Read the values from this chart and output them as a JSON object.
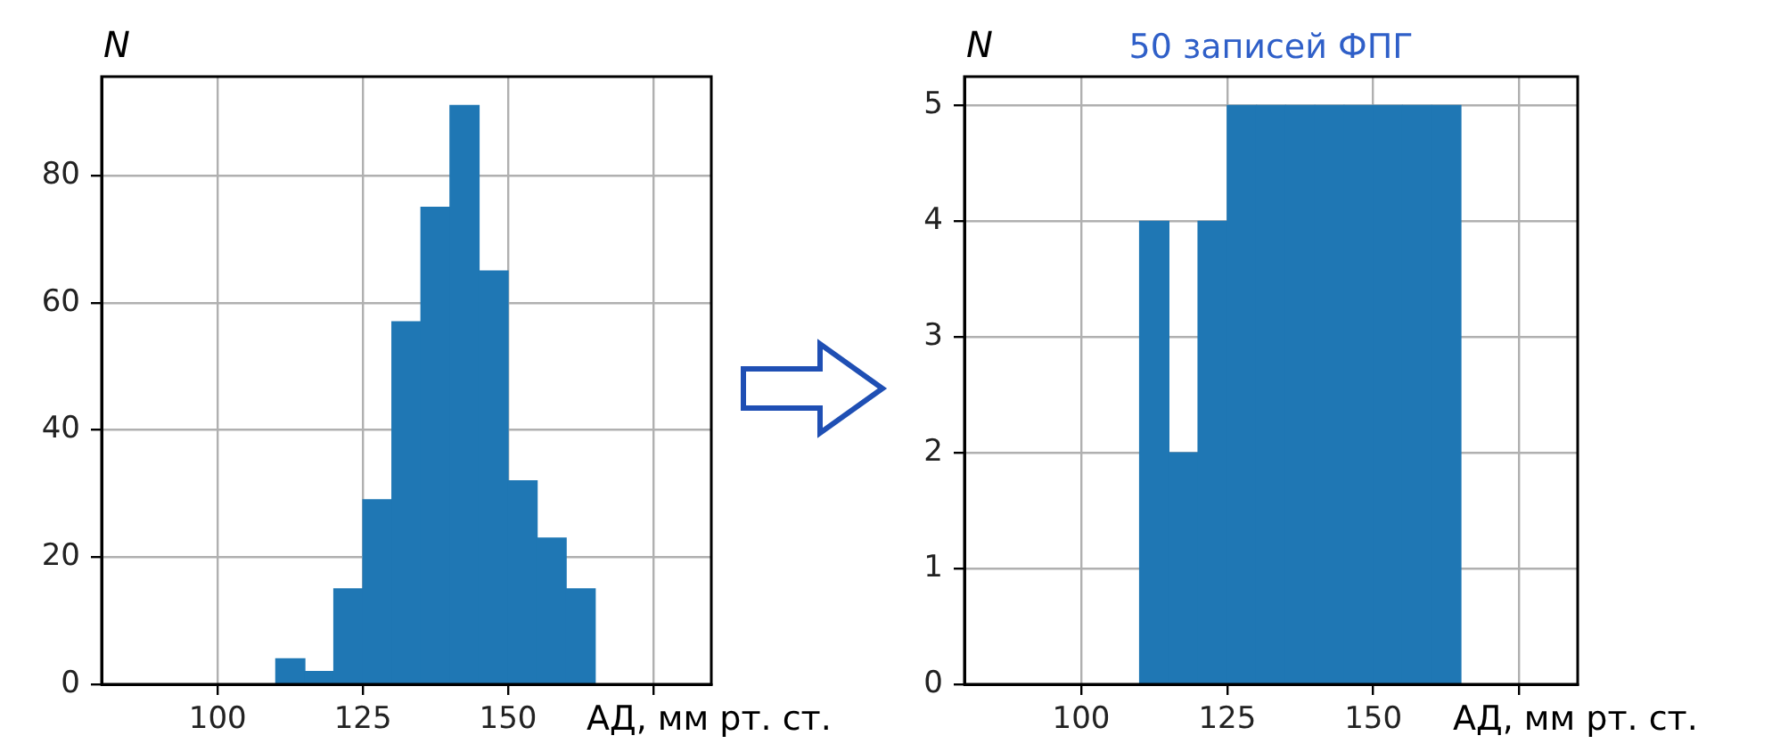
{
  "chart_data": [
    {
      "type": "histogram",
      "xlabel": "АД, мм рт. ст.",
      "ylabel": "N",
      "bins": [
        110,
        115,
        120,
        125,
        130,
        135,
        140,
        145,
        150,
        155,
        160,
        165
      ],
      "values": [
        4,
        2,
        15,
        29,
        57,
        75,
        91,
        65,
        32,
        23,
        15
      ],
      "color": "#1f77b4",
      "xlim": [
        80,
        185
      ],
      "ylim": [
        0,
        95.55
      ],
      "xticks": [
        100,
        125,
        150,
        {
          "value": 175,
          "label": null
        }
      ],
      "yticks": [
        0,
        20,
        40,
        60,
        80
      ],
      "grid": true
    },
    {
      "type": "histogram",
      "title": "50 записей ФПГ",
      "xlabel": "АД, мм рт. ст.",
      "ylabel": "N",
      "bins": [
        110,
        115,
        120,
        125,
        130,
        135,
        140,
        145,
        150,
        155,
        160,
        165
      ],
      "values": [
        4,
        2,
        4,
        5,
        5,
        5,
        5,
        5,
        5,
        5,
        5
      ],
      "color": "#1f77b4",
      "xlim": [
        80,
        185
      ],
      "ylim": [
        0,
        5.25
      ],
      "xticks": [
        100,
        125,
        150,
        {
          "value": 175,
          "label": null
        }
      ],
      "yticks": [
        0,
        1,
        2,
        3,
        4,
        5
      ],
      "grid": true
    }
  ]
}
